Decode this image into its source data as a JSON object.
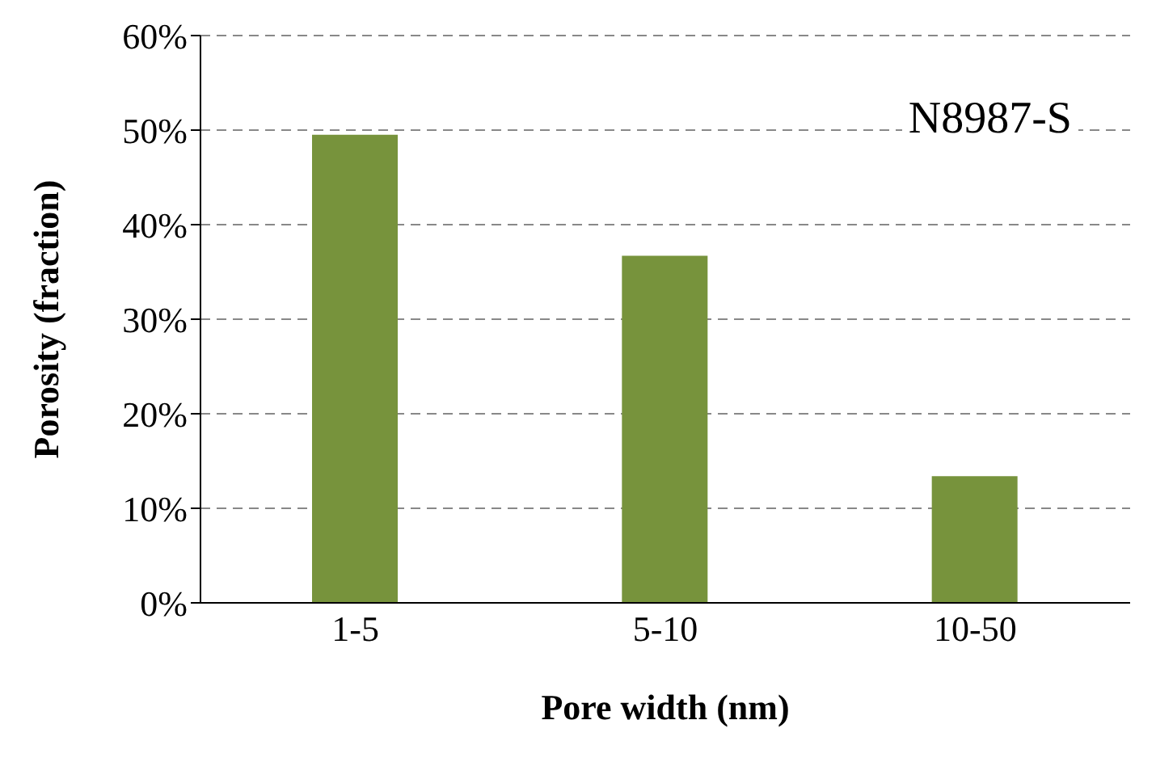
{
  "chart_data": {
    "type": "bar",
    "categories": [
      "1-5",
      "5-10",
      "10-50"
    ],
    "values": [
      49.5,
      36.7,
      13.4
    ],
    "color": "#77933c",
    "xlabel": "Pore width (nm)",
    "ylabel": "Porosity (fraction)",
    "ylim": [
      0,
      60
    ],
    "yticks": [
      {
        "value": 0,
        "label": "0%"
      },
      {
        "value": 10,
        "label": "10%"
      },
      {
        "value": 20,
        "label": "20%"
      },
      {
        "value": 30,
        "label": "30%"
      },
      {
        "value": 40,
        "label": "40%"
      },
      {
        "value": 50,
        "label": "50%"
      },
      {
        "value": 60,
        "label": "60%"
      }
    ],
    "grid": "y",
    "annotations": [
      "N8987-S"
    ]
  }
}
